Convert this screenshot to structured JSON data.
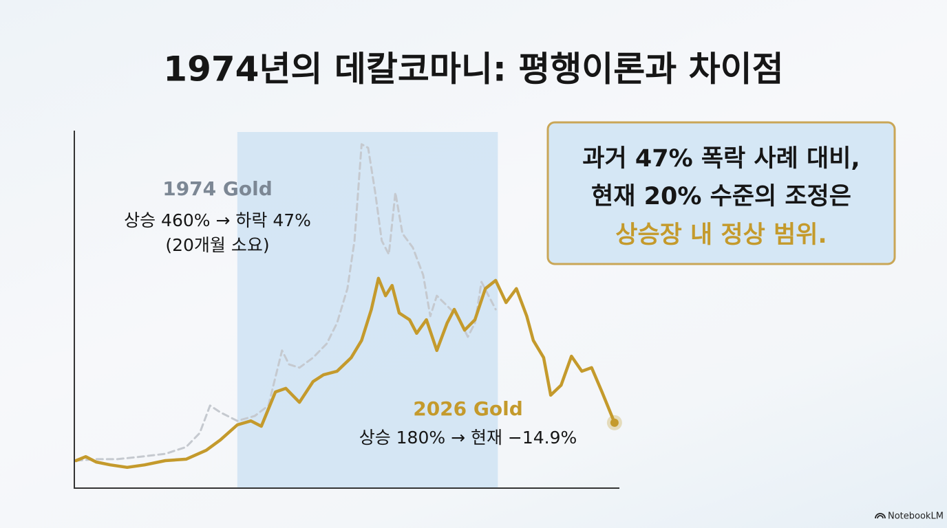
{
  "title": "1974년의 데칼코마니: 평행이론과 차이점",
  "chart_data": {
    "type": "line",
    "xlim": [
      0,
      100
    ],
    "ylim": [
      0,
      100
    ],
    "highlight_xlim": [
      29.9,
      77.7
    ],
    "series": [
      {
        "name": "1974 Gold",
        "color": "#c5c9cf",
        "style": "dashed",
        "x": [
          0.3,
          4.0,
          7.8,
          11.6,
          16.7,
          20.5,
          23.0,
          24.9,
          26.8,
          29.9,
          33.1,
          35.6,
          38.1,
          39.4,
          41.3,
          43.8,
          46.3,
          48.2,
          50.1,
          51.4,
          52.7,
          53.9,
          55.2,
          56.4,
          57.7,
          58.9,
          60.2,
          62.1,
          64.0,
          65.3,
          66.5,
          68.4,
          70.3,
          72.2,
          73.5,
          74.7,
          77.3
        ],
        "values": [
          7.7,
          8.1,
          8.1,
          8.7,
          9.6,
          11.5,
          15.4,
          23.1,
          21.2,
          18.8,
          20.2,
          23.1,
          38.5,
          34.6,
          33.7,
          36.5,
          40.4,
          46.2,
          55.8,
          69.2,
          96.2,
          95.2,
          82.7,
          69.2,
          65.4,
          82.7,
          71.2,
          67.3,
          59.6,
          48.1,
          53.8,
          51.0,
          48.1,
          42.3,
          46.2,
          57.7,
          50.0
        ]
      },
      {
        "name": "2026 Gold",
        "color": "#c49a2c",
        "style": "solid",
        "x": [
          0.3,
          2.1,
          4.0,
          6.6,
          9.7,
          12.9,
          16.7,
          20.5,
          24.2,
          26.8,
          29.9,
          32.4,
          34.3,
          36.9,
          38.8,
          41.3,
          43.8,
          45.7,
          48.2,
          50.8,
          52.7,
          54.5,
          55.8,
          57.1,
          58.3,
          59.6,
          61.5,
          62.8,
          64.6,
          66.5,
          68.4,
          69.7,
          71.6,
          73.5,
          75.4,
          77.3,
          79.2,
          81.1,
          83.0,
          84.2,
          86.1,
          87.4,
          89.3,
          91.2,
          93.1,
          94.9,
          96.8,
          99.1
        ],
        "values": [
          7.7,
          8.8,
          7.3,
          6.5,
          5.8,
          6.5,
          7.7,
          8.1,
          10.6,
          13.5,
          17.7,
          18.8,
          17.3,
          26.9,
          27.9,
          24.0,
          29.8,
          31.7,
          32.7,
          36.5,
          41.3,
          50.0,
          58.7,
          53.8,
          56.7,
          49.0,
          47.1,
          43.3,
          47.1,
          38.5,
          46.2,
          50.0,
          44.2,
          47.1,
          55.8,
          58.1,
          51.9,
          55.8,
          48.1,
          41.3,
          36.5,
          26.0,
          28.8,
          36.9,
          32.7,
          33.7,
          26.9,
          18.3
        ]
      }
    ],
    "annotations": [
      {
        "title": "1974 Gold",
        "lines": [
          "상승 460% → 하락 47%",
          "(20개월 소요)"
        ]
      },
      {
        "title": "2026 Gold",
        "lines": [
          "상승 180% → 현재 −14.9%"
        ]
      }
    ]
  },
  "callout": {
    "lines": [
      "과거 47% 폭락 사례 대비,",
      "현재 20% 수준의 조정은"
    ],
    "highlight": "상승장 내 정상 범위."
  },
  "footer": {
    "brand": "NotebookLM"
  }
}
